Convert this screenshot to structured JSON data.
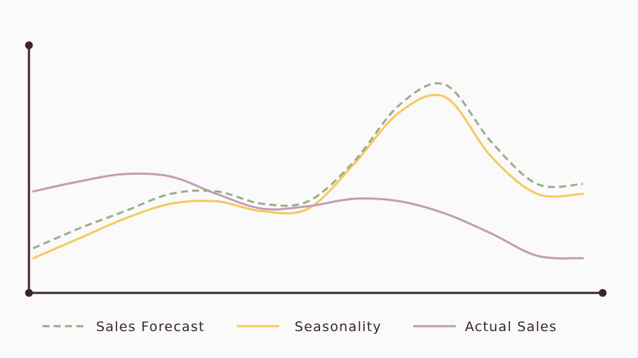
{
  "chart_data": {
    "type": "line",
    "title": "",
    "xlabel": "",
    "ylabel": "",
    "x": [
      0,
      1,
      2,
      3,
      4,
      5,
      6,
      7,
      8,
      9,
      10,
      11,
      12
    ],
    "ylim": [
      0,
      100
    ],
    "grid": false,
    "legend_position": "bottom",
    "axis_color": "#3a2433",
    "background": "#fafafa",
    "series": [
      {
        "name": "Sales Forecast",
        "style": "dashed",
        "color": "#9aae86",
        "values": [
          18,
          26,
          33,
          40,
          41,
          36,
          37,
          53,
          76,
          84,
          61,
          44,
          44
        ]
      },
      {
        "name": "Seasonality",
        "style": "solid",
        "color": "#f5c95e",
        "values": [
          14,
          22,
          30,
          36,
          37,
          33,
          34,
          52,
          73,
          79,
          55,
          40,
          40
        ]
      },
      {
        "name": "Actual Sales",
        "style": "solid",
        "color": "#c49bb5",
        "values": [
          41,
          45,
          48,
          47,
          40,
          34,
          35,
          38,
          37,
          32,
          24,
          15,
          14
        ]
      }
    ]
  }
}
